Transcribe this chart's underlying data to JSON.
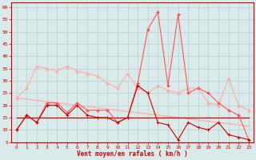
{
  "x": [
    0,
    1,
    2,
    3,
    4,
    5,
    6,
    7,
    8,
    9,
    10,
    11,
    12,
    13,
    14,
    15,
    16,
    17,
    18,
    19,
    20,
    21,
    22,
    23
  ],
  "series1": [
    10,
    16,
    13,
    20,
    20,
    16,
    20,
    16,
    15,
    15,
    13,
    15,
    28,
    25,
    13,
    12,
    6,
    13,
    11,
    10,
    13,
    8,
    7,
    6
  ],
  "series2": [
    23,
    27,
    36,
    35,
    34,
    36,
    34,
    33,
    32,
    29,
    27,
    33,
    27,
    25,
    28,
    26,
    25,
    27,
    27,
    21,
    20,
    31,
    20,
    18
  ],
  "series3": [
    10,
    16,
    13,
    21,
    21,
    17,
    21,
    18,
    18,
    18,
    13,
    15,
    29,
    51,
    58,
    28,
    57,
    25,
    27,
    25,
    21,
    18,
    16,
    6
  ],
  "series4_line": [
    23,
    22.5,
    22,
    21.5,
    21,
    20.5,
    20,
    19.5,
    19,
    18.5,
    18,
    17.5,
    17,
    16.5,
    16,
    15.5,
    15,
    14.5,
    14,
    13.5,
    13,
    12.5,
    12,
    11.5
  ],
  "series5_line": [
    15,
    15,
    15,
    15,
    15,
    15,
    15,
    15,
    15,
    15,
    15,
    15,
    15,
    15,
    15,
    15,
    15,
    15,
    15,
    15,
    15,
    15,
    15,
    15
  ],
  "background_color": "#daeaea",
  "grid_color": "#b8d0d0",
  "line1_color": "#cc0000",
  "line2_color": "#ffaaaa",
  "line3_color": "#ff5555",
  "line4_color": "#ffaaaa",
  "line5_color": "#cc0000",
  "arrow_color": "#cc0000",
  "xlabel": "Vent moyen/en rafales ( km/h )",
  "ylim": [
    5,
    62
  ],
  "xlim": [
    -0.5,
    23.5
  ],
  "yticks": [
    5,
    10,
    15,
    20,
    25,
    30,
    35,
    40,
    45,
    50,
    55,
    60
  ],
  "xticks": [
    0,
    1,
    2,
    3,
    4,
    5,
    6,
    7,
    8,
    9,
    10,
    11,
    12,
    13,
    14,
    15,
    16,
    17,
    18,
    19,
    20,
    21,
    22,
    23
  ]
}
